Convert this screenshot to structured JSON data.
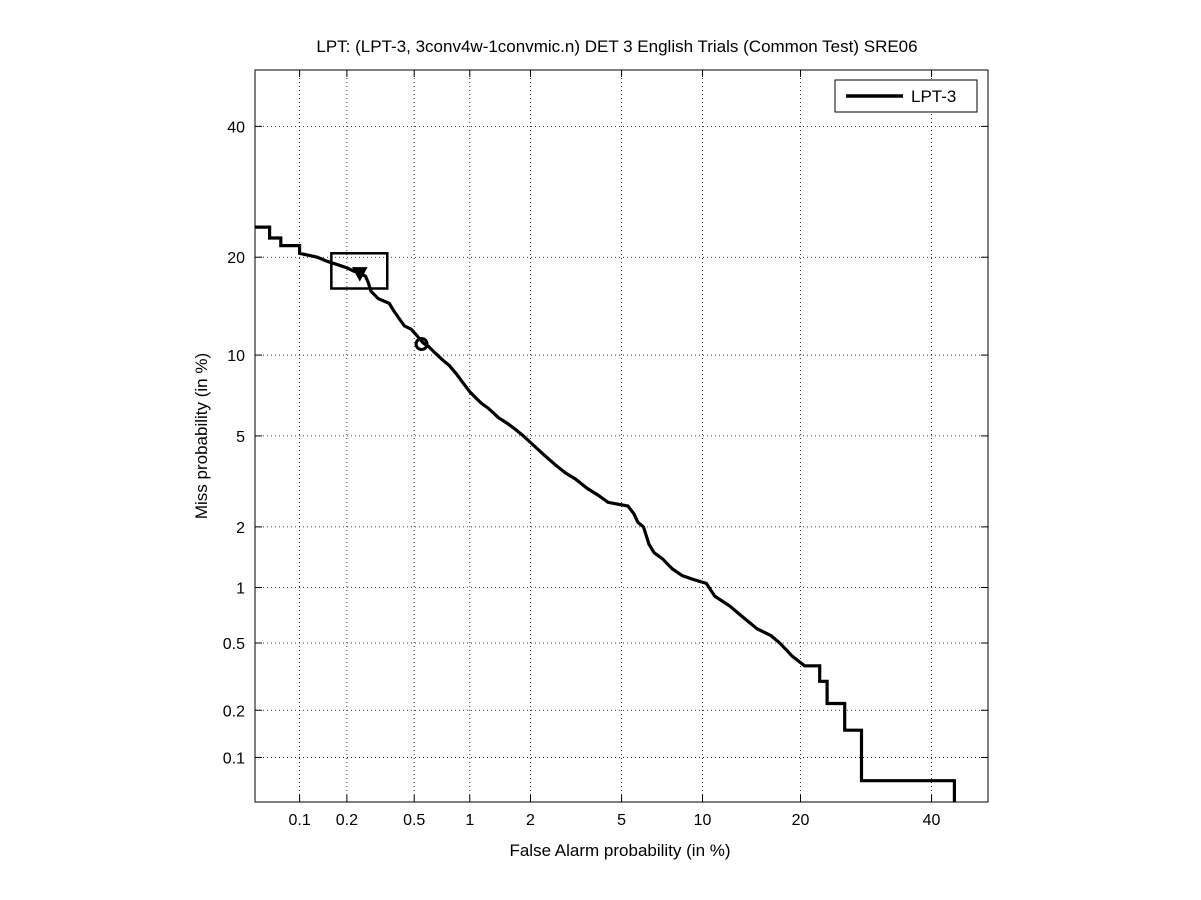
{
  "chart_data": {
    "type": "line",
    "title": "LPT: (LPT-3, 3conv4w-1convmic.n) DET 3 English Trials (Common Test) SRE06",
    "xlabel": "False Alarm probability (in %)",
    "ylabel": "Miss probability (in %)",
    "x_scale": "normal-deviate (probit)",
    "y_scale": "normal-deviate (probit)",
    "xlim": [
      0.05,
      50
    ],
    "ylim": [
      0.05,
      50
    ],
    "x_ticks": [
      0.1,
      0.2,
      0.5,
      1,
      2,
      5,
      10,
      20,
      40
    ],
    "x_tick_labels": [
      "0.1",
      "0.2",
      "0.5",
      "1",
      "2",
      "5",
      "10",
      "20",
      "40"
    ],
    "y_ticks": [
      0.1,
      0.2,
      0.5,
      1,
      2,
      5,
      10,
      20,
      40
    ],
    "y_tick_labels": [
      "0.1",
      "0.2",
      "0.5",
      "1",
      "2",
      "5",
      "10",
      "20",
      "40"
    ],
    "grid": "dotted",
    "legend_position": "top-right",
    "series": [
      {
        "name": "LPT-3",
        "color": "#000000",
        "x": [
          0.05,
          0.063,
          0.063,
          0.075,
          0.075,
          0.1,
          0.1,
          0.13,
          0.15,
          0.18,
          0.2,
          0.22,
          0.24,
          0.26,
          0.27,
          0.28,
          0.31,
          0.33,
          0.36,
          0.38,
          0.41,
          0.44,
          0.48,
          0.52,
          0.56,
          0.6,
          0.65,
          0.72,
          0.78,
          0.85,
          0.92,
          1.0,
          1.08,
          1.15,
          1.25,
          1.4,
          1.55,
          1.7,
          1.85,
          2.0,
          2.3,
          2.6,
          2.9,
          3.2,
          3.6,
          4.0,
          4.4,
          4.8,
          5.3,
          5.6,
          5.8,
          6.1,
          6.4,
          6.7,
          7.2,
          7.8,
          8.5,
          9.3,
          10.3,
          11.0,
          12.3,
          13.5,
          15.0,
          16.5,
          17.5,
          19.0,
          20.5,
          22.5,
          22.5,
          23.5,
          23.5,
          26.0,
          26.0,
          28.5,
          28.5,
          32.0,
          36.0,
          40.0,
          44.0,
          44.0
        ],
        "y": [
          24.0,
          24.0,
          22.5,
          22.5,
          21.5,
          21.5,
          20.5,
          20.0,
          19.5,
          19.0,
          18.7,
          18.3,
          18.0,
          17.7,
          17.0,
          16.0,
          15.2,
          15.0,
          14.7,
          14.0,
          13.2,
          12.5,
          12.2,
          11.6,
          11.0,
          10.7,
          10.2,
          9.6,
          9.2,
          8.6,
          8.0,
          7.4,
          7.0,
          6.7,
          6.4,
          5.9,
          5.6,
          5.3,
          5.0,
          4.7,
          4.2,
          3.8,
          3.5,
          3.3,
          3.0,
          2.8,
          2.6,
          2.55,
          2.5,
          2.3,
          2.1,
          2.0,
          1.65,
          1.5,
          1.4,
          1.25,
          1.15,
          1.1,
          1.05,
          0.9,
          0.8,
          0.7,
          0.6,
          0.55,
          0.5,
          0.42,
          0.37,
          0.37,
          0.3,
          0.3,
          0.22,
          0.22,
          0.15,
          0.15,
          0.07,
          0.07,
          0.07,
          0.07,
          0.07,
          0.05
        ]
      }
    ],
    "markers": [
      {
        "shape": "filled-triangle-down",
        "x": 0.24,
        "y": 18.0
      },
      {
        "shape": "open-circle",
        "x": 0.55,
        "y": 10.9
      }
    ],
    "confidence_box": {
      "x": [
        0.16,
        0.35
      ],
      "y": [
        16.3,
        20.5
      ]
    }
  }
}
